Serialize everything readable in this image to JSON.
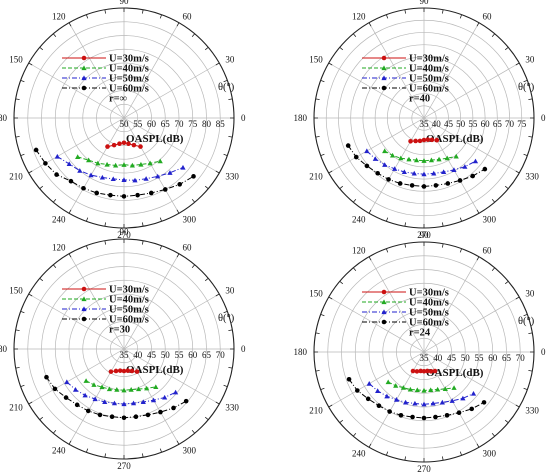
{
  "chart_data": [
    {
      "type": "scatter",
      "coordinate_system": "polar",
      "case_label": "r=∞",
      "radial_axis": {
        "label": "OASPL(dB)",
        "ticks": [
          50,
          55,
          60,
          65,
          70,
          75,
          80,
          85
        ],
        "range": [
          50,
          90
        ]
      },
      "angular_axis": {
        "label": "θ(°)",
        "ticks": [
          0,
          30,
          60,
          90,
          120,
          150,
          180,
          210,
          240,
          270,
          300,
          330
        ]
      },
      "grid": true,
      "legend": {
        "position": "top-left",
        "entries": [
          "U=30m/s",
          "U=40m/s",
          "U=50m/s",
          "U=60m/s"
        ]
      },
      "series": [
        {
          "name": "U=30m/s",
          "color": "#cc1111",
          "line": "solid",
          "marker": "circle",
          "points": [
            [
              240,
              62
            ],
            [
              250,
              60.5
            ],
            [
              260,
              59.5
            ],
            [
              270,
              59
            ],
            [
              280,
              59.5
            ],
            [
              290,
              60.5
            ],
            [
              300,
              62
            ]
          ]
        },
        {
          "name": "U=40m/s",
          "color": "#22aa22",
          "line": "dashed",
          "marker": "triangle",
          "points": [
            [
              220,
              72
            ],
            [
              230,
              70
            ],
            [
              240,
              69
            ],
            [
              250,
              68
            ],
            [
              260,
              67.5
            ],
            [
              270,
              67
            ],
            [
              280,
              67.5
            ],
            [
              290,
              68
            ],
            [
              300,
              69
            ],
            [
              310,
              70.5
            ]
          ]
        },
        {
          "name": "U=50m/s",
          "color": "#2222cc",
          "line": "dashdot",
          "marker": "triangle",
          "points": [
            [
              210,
              78
            ],
            [
              220,
              76
            ],
            [
              230,
              75
            ],
            [
              240,
              74
            ],
            [
              250,
              73
            ],
            [
              260,
              72.5
            ],
            [
              270,
              72.5
            ],
            [
              280,
              73
            ],
            [
              290,
              73.5
            ],
            [
              300,
              74.5
            ],
            [
              310,
              76
            ],
            [
              320,
              78
            ]
          ]
        },
        {
          "name": "U=60m/s",
          "color": "#000000",
          "line": "dashdot",
          "marker": "circle",
          "points": [
            [
              200,
              84
            ],
            [
              210,
              83
            ],
            [
              220,
              82
            ],
            [
              230,
              80
            ],
            [
              240,
              79.5
            ],
            [
              250,
              79
            ],
            [
              260,
              78.5
            ],
            [
              270,
              78.5
            ],
            [
              280,
              78.5
            ],
            [
              290,
              79
            ],
            [
              300,
              80
            ],
            [
              310,
              81.5
            ],
            [
              320,
              83
            ]
          ]
        }
      ]
    },
    {
      "type": "scatter",
      "coordinate_system": "polar",
      "case_label": "r=40",
      "radial_axis": {
        "label": "OASPL(dB)",
        "ticks": [
          35,
          40,
          45,
          50,
          55,
          60,
          65,
          70,
          75
        ],
        "range": [
          35,
          80
        ]
      },
      "angular_axis": {
        "label": "θ(°)",
        "ticks": [
          0,
          30,
          60,
          90,
          120,
          150,
          180,
          210,
          240,
          270,
          300,
          330
        ]
      },
      "grid": true,
      "legend": {
        "position": "top-left",
        "entries": [
          "U=30m/s",
          "U=40m/s",
          "U=50m/s",
          "U=60m/s"
        ]
      },
      "series": [
        {
          "name": "U=30m/s",
          "color": "#cc1111",
          "line": "solid",
          "marker": "circle",
          "points": [
            [
              240,
              46
            ],
            [
              250,
              45
            ],
            [
              260,
              44.5
            ],
            [
              270,
              44
            ],
            [
              280,
              44
            ],
            [
              290,
              44.5
            ],
            [
              300,
              45.5
            ]
          ]
        },
        {
          "name": "U=40m/s",
          "color": "#22aa22",
          "line": "dashed",
          "marker": "triangle",
          "points": [
            [
              220,
              56
            ],
            [
              230,
              55
            ],
            [
              240,
              54
            ],
            [
              250,
              53
            ],
            [
              260,
              52.5
            ],
            [
              270,
              52.5
            ],
            [
              280,
              52.5
            ],
            [
              290,
              53
            ],
            [
              300,
              54
            ],
            [
              310,
              55.5
            ]
          ]
        },
        {
          "name": "U=50m/s",
          "color": "#2222cc",
          "line": "dashdot",
          "marker": "triangle",
          "points": [
            [
              210,
              62
            ],
            [
              220,
              61
            ],
            [
              230,
              60
            ],
            [
              240,
              59
            ],
            [
              250,
              58.5
            ],
            [
              260,
              58
            ],
            [
              270,
              58
            ],
            [
              280,
              58
            ],
            [
              290,
              58.5
            ],
            [
              300,
              59.5
            ],
            [
              310,
              61
            ],
            [
              320,
              62.5
            ]
          ]
        },
        {
          "name": "U=60m/s",
          "color": "#000000",
          "line": "dashdot",
          "marker": "circle",
          "points": [
            [
              200,
              68
            ],
            [
              210,
              67
            ],
            [
              220,
              65.5
            ],
            [
              230,
              64.5
            ],
            [
              240,
              64
            ],
            [
              250,
              63.5
            ],
            [
              260,
              63
            ],
            [
              270,
              63
            ],
            [
              280,
              63
            ],
            [
              290,
              63.5
            ],
            [
              300,
              64.5
            ],
            [
              310,
              66
            ],
            [
              320,
              67.5
            ]
          ]
        }
      ]
    },
    {
      "type": "scatter",
      "coordinate_system": "polar",
      "case_label": "r=30",
      "radial_axis": {
        "label": "OASPL(dB)",
        "ticks": [
          35,
          40,
          45,
          50,
          55,
          60,
          65,
          70
        ],
        "range": [
          35,
          75
        ]
      },
      "angular_axis": {
        "label": "θ(°)",
        "ticks": [
          0,
          30,
          60,
          90,
          120,
          150,
          180,
          210,
          240,
          270,
          300,
          330
        ]
      },
      "grid": true,
      "legend": {
        "position": "top-left",
        "entries": [
          "U=30m/s",
          "U=40m/s",
          "U=50m/s",
          "U=60m/s"
        ]
      },
      "series": [
        {
          "name": "U=30m/s",
          "color": "#cc1111",
          "line": "solid",
          "marker": "circle",
          "points": [
            [
              240,
              44.5
            ],
            [
              250,
              43.5
            ],
            [
              260,
              43
            ],
            [
              270,
              43
            ],
            [
              280,
              43
            ],
            [
              290,
              43.5
            ],
            [
              300,
              44.5
            ]
          ]
        },
        {
          "name": "U=40m/s",
          "color": "#22aa22",
          "line": "dashed",
          "marker": "triangle",
          "points": [
            [
              220,
              53
            ],
            [
              230,
              52
            ],
            [
              240,
              51
            ],
            [
              250,
              50.5
            ],
            [
              260,
              50
            ],
            [
              270,
              50
            ],
            [
              280,
              50
            ],
            [
              290,
              50.5
            ],
            [
              300,
              51.5
            ],
            [
              310,
              53
            ]
          ]
        },
        {
          "name": "U=50m/s",
          "color": "#2222cc",
          "line": "dashdot",
          "marker": "triangle",
          "points": [
            [
              210,
              59
            ],
            [
              220,
              58
            ],
            [
              230,
              57
            ],
            [
              240,
              56
            ],
            [
              250,
              55.5
            ],
            [
              260,
              55
            ],
            [
              270,
              55
            ],
            [
              280,
              55
            ],
            [
              290,
              55.5
            ],
            [
              300,
              56.5
            ],
            [
              310,
              58
            ],
            [
              320,
              59.5
            ]
          ]
        },
        {
          "name": "U=60m/s",
          "color": "#000000",
          "line": "dashdot",
          "marker": "circle",
          "points": [
            [
              200,
              65
            ],
            [
              210,
              64
            ],
            [
              220,
              62.5
            ],
            [
              230,
              61.5
            ],
            [
              240,
              61
            ],
            [
              250,
              60.5
            ],
            [
              260,
              60
            ],
            [
              270,
              60
            ],
            [
              280,
              60
            ],
            [
              290,
              60.5
            ],
            [
              300,
              61.5
            ],
            [
              310,
              63
            ],
            [
              320,
              64.5
            ]
          ]
        }
      ]
    },
    {
      "type": "scatter",
      "coordinate_system": "polar",
      "case_label": "r=24",
      "radial_axis": {
        "label": "OASPL(dB)",
        "ticks": [
          35,
          40,
          45,
          50,
          55,
          60,
          65,
          70
        ],
        "range": [
          35,
          75
        ]
      },
      "angular_axis": {
        "label": "θ(°)",
        "ticks": [
          0,
          30,
          60,
          90,
          120,
          150,
          180,
          210,
          240,
          270,
          300,
          330
        ]
      },
      "grid": true,
      "legend": {
        "position": "top-left",
        "entries": [
          "U=30m/s",
          "U=40m/s",
          "U=50m/s",
          "U=60m/s"
        ]
      },
      "series": [
        {
          "name": "U=30m/s",
          "color": "#cc1111",
          "line": "solid",
          "marker": "circle",
          "points": [
            [
              240,
              43
            ],
            [
              250,
              42.5
            ],
            [
              260,
              42
            ],
            [
              270,
              42
            ],
            [
              280,
              42
            ],
            [
              290,
              42.5
            ],
            [
              300,
              43
            ]
          ]
        },
        {
          "name": "U=40m/s",
          "color": "#22aa22",
          "line": "dashed",
          "marker": "triangle",
          "points": [
            [
              220,
              52
            ],
            [
              230,
              51
            ],
            [
              240,
              50
            ],
            [
              250,
              49.5
            ],
            [
              260,
              49
            ],
            [
              270,
              49
            ],
            [
              280,
              49
            ],
            [
              290,
              49.5
            ],
            [
              300,
              50.5
            ],
            [
              310,
              52
            ]
          ]
        },
        {
          "name": "U=50m/s",
          "color": "#2222cc",
          "line": "dashdot",
          "marker": "triangle",
          "points": [
            [
              210,
              58
            ],
            [
              220,
              57
            ],
            [
              230,
              56
            ],
            [
              240,
              55
            ],
            [
              250,
              54.5
            ],
            [
              260,
              54
            ],
            [
              270,
              54
            ],
            [
              280,
              54
            ],
            [
              290,
              54.5
            ],
            [
              300,
              55.5
            ],
            [
              310,
              57
            ],
            [
              320,
              58.5
            ]
          ]
        },
        {
          "name": "U=60m/s",
          "color": "#000000",
          "line": "dashdot",
          "marker": "circle",
          "points": [
            [
              200,
              64
            ],
            [
              210,
              63
            ],
            [
              220,
              61.5
            ],
            [
              230,
              60.5
            ],
            [
              240,
              60
            ],
            [
              250,
              59.5
            ],
            [
              260,
              59
            ],
            [
              270,
              59
            ],
            [
              280,
              59
            ],
            [
              290,
              59.5
            ],
            [
              300,
              60.5
            ],
            [
              310,
              62
            ],
            [
              320,
              63.5
            ]
          ]
        }
      ]
    }
  ]
}
